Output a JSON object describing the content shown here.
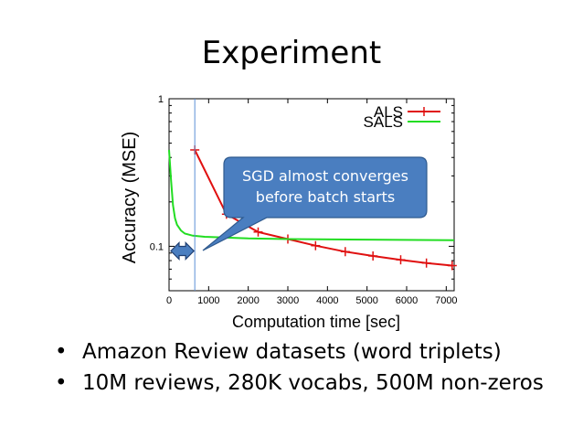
{
  "slide": {
    "title": "Experiment",
    "bullets": [
      "Amazon Review datasets (word triplets)",
      "10M reviews, 280K vocabs, 500M non-zeros"
    ],
    "bullet_symbol": "•"
  },
  "chart_data": {
    "type": "line",
    "title": "",
    "xlabel": "Computation time [sec]",
    "ylabel": "Accuracy (MSE)",
    "xlim": [
      0,
      7200
    ],
    "ylim": [
      0.05,
      1
    ],
    "yscale": "log",
    "x_ticks": [
      0,
      1000,
      2000,
      3000,
      4000,
      5000,
      6000,
      7000
    ],
    "y_ticks": [
      0.1,
      1
    ],
    "y_tick_labels": [
      "0.1",
      "1"
    ],
    "grid": false,
    "legend": "top-right",
    "series": [
      {
        "name": "ALS",
        "color": "#e01010",
        "marker": "plus",
        "x": [
          650,
          1450,
          2250,
          3000,
          3700,
          4450,
          5150,
          5850,
          6500,
          7150
        ],
        "y": [
          0.45,
          0.165,
          0.125,
          0.112,
          0.101,
          0.092,
          0.086,
          0.081,
          0.077,
          0.074
        ]
      },
      {
        "name": "SALS",
        "color": "#22dd22",
        "marker": "none",
        "x": [
          0,
          50,
          100,
          150,
          200,
          300,
          400,
          600,
          900,
          1300,
          2000,
          3000,
          5000,
          7200
        ],
        "y": [
          0.45,
          0.28,
          0.19,
          0.155,
          0.14,
          0.128,
          0.122,
          0.118,
          0.116,
          0.115,
          0.113,
          0.112,
          0.111,
          0.11
        ]
      }
    ],
    "vline_x": 650,
    "annotation": {
      "text_lines": [
        "SGD almost converges",
        "before batch starts"
      ],
      "fill": "#4a7ec0",
      "stroke": "#2f5a8e",
      "text_color": "#ffffff"
    },
    "arrow": {
      "x_range": [
        0,
        650
      ],
      "y": 0.093,
      "fill": "#4a7ec0",
      "stroke": "#1f3f72"
    }
  }
}
